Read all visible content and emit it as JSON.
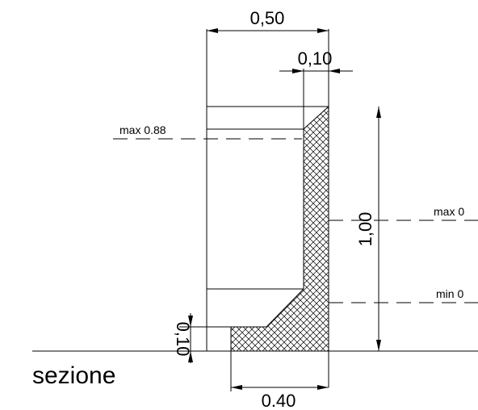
{
  "drawing": {
    "dim_top_width": "0,50",
    "dim_wall_thickness": "0,10",
    "dim_height": "1,00",
    "dim_base_thickness": "0,10",
    "dim_base_width": "0.40",
    "label_max_left": "max 0.88",
    "label_max_right": "max 0",
    "label_min_right": "min 0",
    "section_title": "sezione"
  },
  "colors": {
    "line": "#000000",
    "background": "#ffffff"
  }
}
